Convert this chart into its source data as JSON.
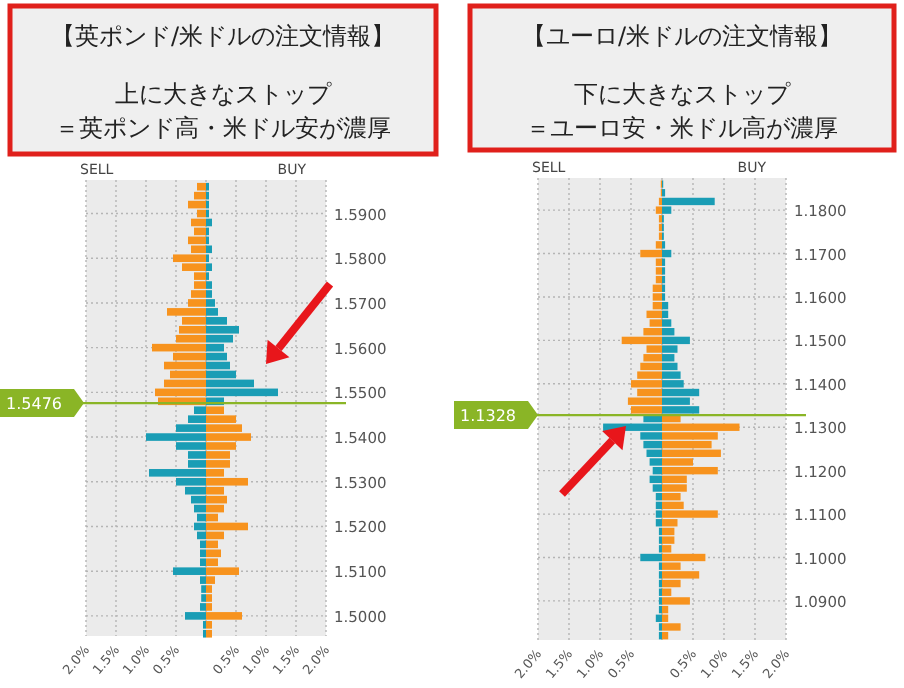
{
  "chart_data": [
    {
      "type": "bar",
      "orientation": "horizontal",
      "stacked": true,
      "title": "【英ポンド/米ドルの注文情報】",
      "subtitle": "上に大きなストップ",
      "annotations": [
        "＝英ポンド高・米ドル安が濃厚",
        "SELL",
        "BUY"
      ],
      "grid": true,
      "x": [
        1.496,
        1.498,
        1.5,
        1.502,
        1.504,
        1.506,
        1.508,
        1.51,
        1.512,
        1.514,
        1.516,
        1.518,
        1.52,
        1.522,
        1.524,
        1.526,
        1.528,
        1.53,
        1.532,
        1.534,
        1.536,
        1.538,
        1.54,
        1.542,
        1.544,
        1.546,
        1.548,
        1.55,
        1.552,
        1.554,
        1.556,
        1.558,
        1.56,
        1.562,
        1.564,
        1.566,
        1.568,
        1.57,
        1.572,
        1.574,
        1.576,
        1.578,
        1.58,
        1.582,
        1.584,
        1.586,
        1.588,
        1.59,
        1.592,
        1.594,
        1.596
      ],
      "series": [
        {
          "color": "#f7931e",
          "values": [
            0.1,
            0.1,
            0.6,
            0.1,
            0.1,
            0.1,
            0.15,
            0.55,
            0.2,
            0.25,
            0.2,
            0.3,
            0.7,
            0.2,
            0.3,
            0.35,
            0.3,
            0.7,
            0.3,
            0.4,
            0.4,
            0.5,
            0.75,
            0.6,
            0.5,
            0.3,
            -0.8,
            -0.85,
            -0.7,
            -0.6,
            -0.7,
            -0.55,
            -0.9,
            -0.5,
            -0.45,
            -0.4,
            -0.65,
            -0.3,
            -0.25,
            -0.2,
            -0.2,
            -0.4,
            -0.55,
            -0.25,
            -0.3,
            -0.2,
            -0.25,
            -0.15,
            -0.3,
            -0.2,
            -0.15
          ]
        },
        {
          "color": "#1a9db5",
          "values": [
            -0.05,
            -0.05,
            -0.35,
            -0.1,
            -0.08,
            -0.08,
            -0.1,
            -0.55,
            -0.1,
            -0.1,
            -0.1,
            -0.15,
            -0.2,
            -0.15,
            -0.2,
            -0.25,
            -0.35,
            -0.5,
            -0.95,
            -0.3,
            -0.3,
            -0.5,
            -1.0,
            -0.5,
            -0.3,
            -0.2,
            0.3,
            1.2,
            0.8,
            0.5,
            0.4,
            0.35,
            0.3,
            0.45,
            0.55,
            0.35,
            0.2,
            0.15,
            0.1,
            0.1,
            0.05,
            0.1,
            0.05,
            0.1,
            0.05,
            0.05,
            0.1,
            0.05,
            0.05,
            0.05,
            0.05
          ]
        }
      ],
      "xlim": [
        -2,
        2
      ],
      "xticks": [
        {
          "value": -2,
          "label": "2.0%"
        },
        {
          "value": -1.5,
          "label": "1.5%"
        },
        {
          "value": -1,
          "label": "1.0%"
        },
        {
          "value": -0.5,
          "label": "0.5%"
        },
        {
          "value": 0,
          "label": null
        },
        {
          "value": 0.5,
          "label": "0.5%"
        },
        {
          "value": 1,
          "label": "1.0%"
        },
        {
          "value": 1.5,
          "label": "1.5%"
        },
        {
          "value": 2,
          "label": "2.0%"
        }
      ],
      "ylim": [
        1.4955,
        1.5975
      ],
      "yticks": [
        {
          "value": 1.5,
          "label": "1.5000"
        },
        {
          "value": 1.51,
          "label": "1.5100"
        },
        {
          "value": 1.52,
          "label": "1.5200"
        },
        {
          "value": 1.53,
          "label": "1.5300"
        },
        {
          "value": 1.54,
          "label": "1.5400"
        },
        {
          "value": 1.55,
          "label": "1.5500"
        },
        {
          "value": 1.56,
          "label": "1.5600"
        },
        {
          "value": 1.57,
          "label": "1.5700"
        },
        {
          "value": 1.58,
          "label": "1.5800"
        },
        {
          "value": 1.59,
          "label": "1.5900"
        }
      ],
      "ref_lines": [
        {
          "axis": "y",
          "value": 1.5476,
          "label": "1.5476",
          "color": "#8ab526"
        }
      ]
    },
    {
      "type": "bar",
      "orientation": "horizontal",
      "stacked": true,
      "title": "【ユーロ/米ドルの注文情報】",
      "subtitle": "下に大きなストップ",
      "annotations": [
        "＝ユーロ安・米ドル高が濃厚",
        "SELL",
        "BUY"
      ],
      "grid": true,
      "x": [
        1.082,
        1.084,
        1.086,
        1.088,
        1.09,
        1.092,
        1.094,
        1.096,
        1.098,
        1.1,
        1.102,
        1.104,
        1.106,
        1.108,
        1.11,
        1.112,
        1.114,
        1.116,
        1.118,
        1.12,
        1.122,
        1.124,
        1.126,
        1.128,
        1.13,
        1.132,
        1.134,
        1.136,
        1.138,
        1.14,
        1.142,
        1.144,
        1.146,
        1.148,
        1.15,
        1.152,
        1.154,
        1.156,
        1.158,
        1.16,
        1.162,
        1.164,
        1.166,
        1.168,
        1.17,
        1.172,
        1.174,
        1.176,
        1.178,
        1.18,
        1.182,
        1.184,
        1.186
      ],
      "series": [
        {
          "color": "#f7931e",
          "values": [
            0.1,
            0.3,
            0.1,
            0.1,
            0.45,
            0.15,
            0.3,
            0.6,
            0.3,
            0.7,
            0.15,
            0.2,
            0.2,
            0.25,
            0.9,
            0.35,
            0.3,
            0.4,
            0.4,
            0.9,
            0.5,
            0.95,
            0.8,
            0.9,
            1.25,
            0.3,
            -0.5,
            -0.55,
            -0.4,
            -0.5,
            -0.4,
            -0.35,
            -0.3,
            -0.25,
            -0.65,
            -0.3,
            -0.2,
            -0.25,
            -0.15,
            -0.15,
            -0.15,
            -0.1,
            -0.1,
            -0.1,
            -0.35,
            -0.1,
            -0.05,
            -0.05,
            -0.05,
            -0.1,
            -0.05,
            -0.02,
            -0.02
          ]
        },
        {
          "color": "#1a9db5",
          "values": [
            -0.05,
            -0.05,
            -0.1,
            -0.05,
            -0.05,
            -0.05,
            -0.05,
            -0.05,
            -0.05,
            -0.35,
            -0.05,
            -0.05,
            -0.05,
            -0.1,
            -0.1,
            -0.1,
            -0.1,
            -0.15,
            -0.2,
            -0.15,
            -0.2,
            -0.25,
            -0.3,
            -0.35,
            -0.95,
            -0.3,
            0.6,
            0.45,
            0.6,
            0.35,
            0.3,
            0.25,
            0.2,
            0.25,
            0.45,
            0.2,
            0.15,
            0.1,
            0.1,
            0.05,
            0.05,
            0.05,
            0.05,
            0.05,
            0.15,
            0.05,
            0.03,
            0.03,
            0.03,
            0.15,
            0.85,
            0.05,
            0.02
          ]
        }
      ],
      "xlim": [
        -2,
        2
      ],
      "xticks": [
        {
          "value": -2,
          "label": "2.0%"
        },
        {
          "value": -1.5,
          "label": "1.5%"
        },
        {
          "value": -1,
          "label": "1.0%"
        },
        {
          "value": -0.5,
          "label": "0.5%"
        },
        {
          "value": 0,
          "label": null
        },
        {
          "value": 0.5,
          "label": "0.5%"
        },
        {
          "value": 1,
          "label": "1.0%"
        },
        {
          "value": 1.5,
          "label": "1.5%"
        },
        {
          "value": 2,
          "label": "2.0%"
        }
      ],
      "ylim": [
        1.081,
        1.1874
      ],
      "yticks": [
        {
          "value": 1.09,
          "label": "1.0900"
        },
        {
          "value": 1.1,
          "label": "1.1000"
        },
        {
          "value": 1.11,
          "label": "1.1100"
        },
        {
          "value": 1.12,
          "label": "1.1200"
        },
        {
          "value": 1.13,
          "label": "1.1300"
        },
        {
          "value": 1.14,
          "label": "1.1400"
        },
        {
          "value": 1.15,
          "label": "1.1500"
        },
        {
          "value": 1.16,
          "label": "1.1600"
        },
        {
          "value": 1.17,
          "label": "1.1700"
        },
        {
          "value": 1.18,
          "label": "1.1800"
        }
      ],
      "ref_lines": [
        {
          "axis": "y",
          "value": 1.1328,
          "label": "1.1328",
          "color": "#8ab526"
        }
      ]
    }
  ]
}
